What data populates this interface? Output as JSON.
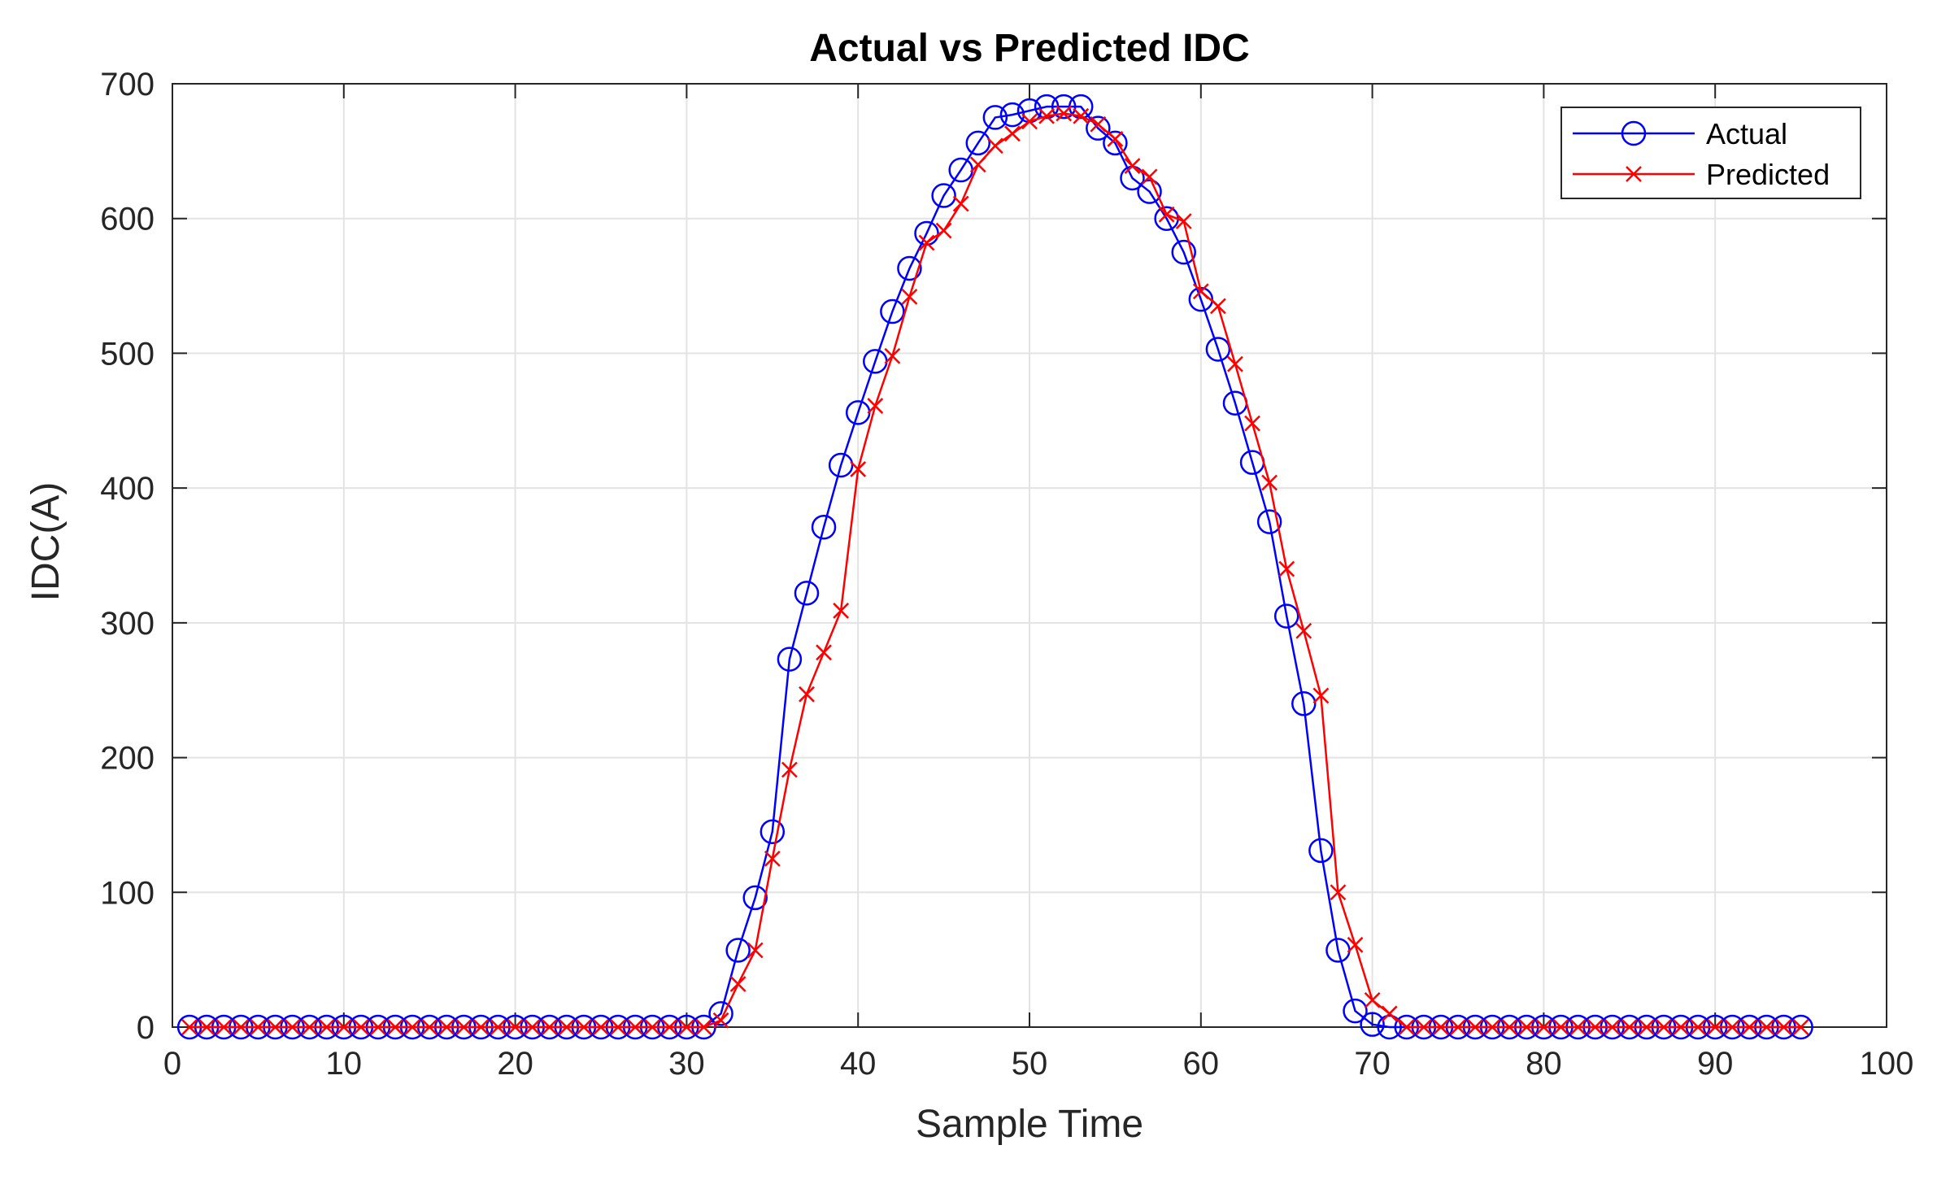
{
  "chart_data": {
    "type": "line",
    "title": "Actual vs Predicted IDC",
    "xlabel": "Sample Time",
    "ylabel": "IDC(A)",
    "xlim": [
      0,
      100
    ],
    "ylim": [
      0,
      700
    ],
    "xticks": [
      0,
      10,
      20,
      30,
      40,
      50,
      60,
      70,
      80,
      90,
      100
    ],
    "yticks": [
      0,
      100,
      200,
      300,
      400,
      500,
      600,
      700
    ],
    "xtick_labels": [
      "0",
      "10",
      "20",
      "30",
      "40",
      "50",
      "60",
      "70",
      "80",
      "90",
      "100"
    ],
    "ytick_labels": [
      "0",
      "100",
      "200",
      "300",
      "400",
      "500",
      "600",
      "700"
    ],
    "grid": true,
    "legend_location": "top-right",
    "x": [
      1,
      2,
      3,
      4,
      5,
      6,
      7,
      8,
      9,
      10,
      11,
      12,
      13,
      14,
      15,
      16,
      17,
      18,
      19,
      20,
      21,
      22,
      23,
      24,
      25,
      26,
      27,
      28,
      29,
      30,
      31,
      32,
      33,
      34,
      35,
      36,
      37,
      38,
      39,
      40,
      41,
      42,
      43,
      44,
      45,
      46,
      47,
      48,
      49,
      50,
      51,
      52,
      53,
      54,
      55,
      56,
      57,
      58,
      59,
      60,
      61,
      62,
      63,
      64,
      65,
      66,
      67,
      68,
      69,
      70,
      71,
      72,
      73,
      74,
      75,
      76,
      77,
      78,
      79,
      80,
      81,
      82,
      83,
      84,
      85,
      86,
      87,
      88,
      89,
      90,
      91,
      92,
      93,
      94,
      95
    ],
    "series": [
      {
        "name": "Actual",
        "color": "#0000ff",
        "marker": "circle",
        "values": [
          0,
          0,
          0,
          0,
          0,
          0,
          0,
          0,
          0,
          0,
          0,
          0,
          0,
          0,
          0,
          0,
          0,
          0,
          0,
          0,
          0,
          0,
          0,
          0,
          0,
          0,
          0,
          0,
          0,
          0,
          0,
          10,
          57,
          96,
          145,
          273,
          322,
          371,
          417,
          456,
          494,
          531,
          563,
          589,
          617,
          636,
          656,
          675,
          677,
          680,
          683,
          683,
          683,
          667,
          656,
          630,
          620,
          600,
          575,
          540,
          503,
          463,
          419,
          375,
          305,
          240,
          131,
          57,
          12,
          2,
          0,
          0,
          0,
          0,
          0,
          0,
          0,
          0,
          0,
          0,
          0,
          0,
          0,
          0,
          0,
          0,
          0,
          0,
          0,
          0,
          0,
          0,
          0,
          0,
          0
        ]
      },
      {
        "name": "Predicted",
        "color": "#ff0000",
        "marker": "x",
        "values": [
          0,
          0,
          0,
          0,
          0,
          0,
          0,
          0,
          0,
          0,
          0,
          0,
          0,
          0,
          0,
          0,
          0,
          0,
          0,
          0,
          0,
          0,
          0,
          0,
          0,
          0,
          0,
          0,
          0,
          0,
          0,
          5,
          32,
          57,
          125,
          191,
          247,
          278,
          309,
          414,
          461,
          498,
          542,
          582,
          591,
          611,
          640,
          654,
          663,
          672,
          676,
          678,
          676,
          670,
          659,
          639,
          631,
          603,
          598,
          546,
          535,
          492,
          448,
          404,
          340,
          294,
          246,
          100,
          61,
          20,
          10,
          0,
          0,
          0,
          0,
          0,
          0,
          0,
          0,
          0,
          0,
          0,
          0,
          0,
          0,
          0,
          0,
          0,
          0,
          0,
          0,
          0,
          0,
          0,
          0
        ]
      }
    ]
  }
}
